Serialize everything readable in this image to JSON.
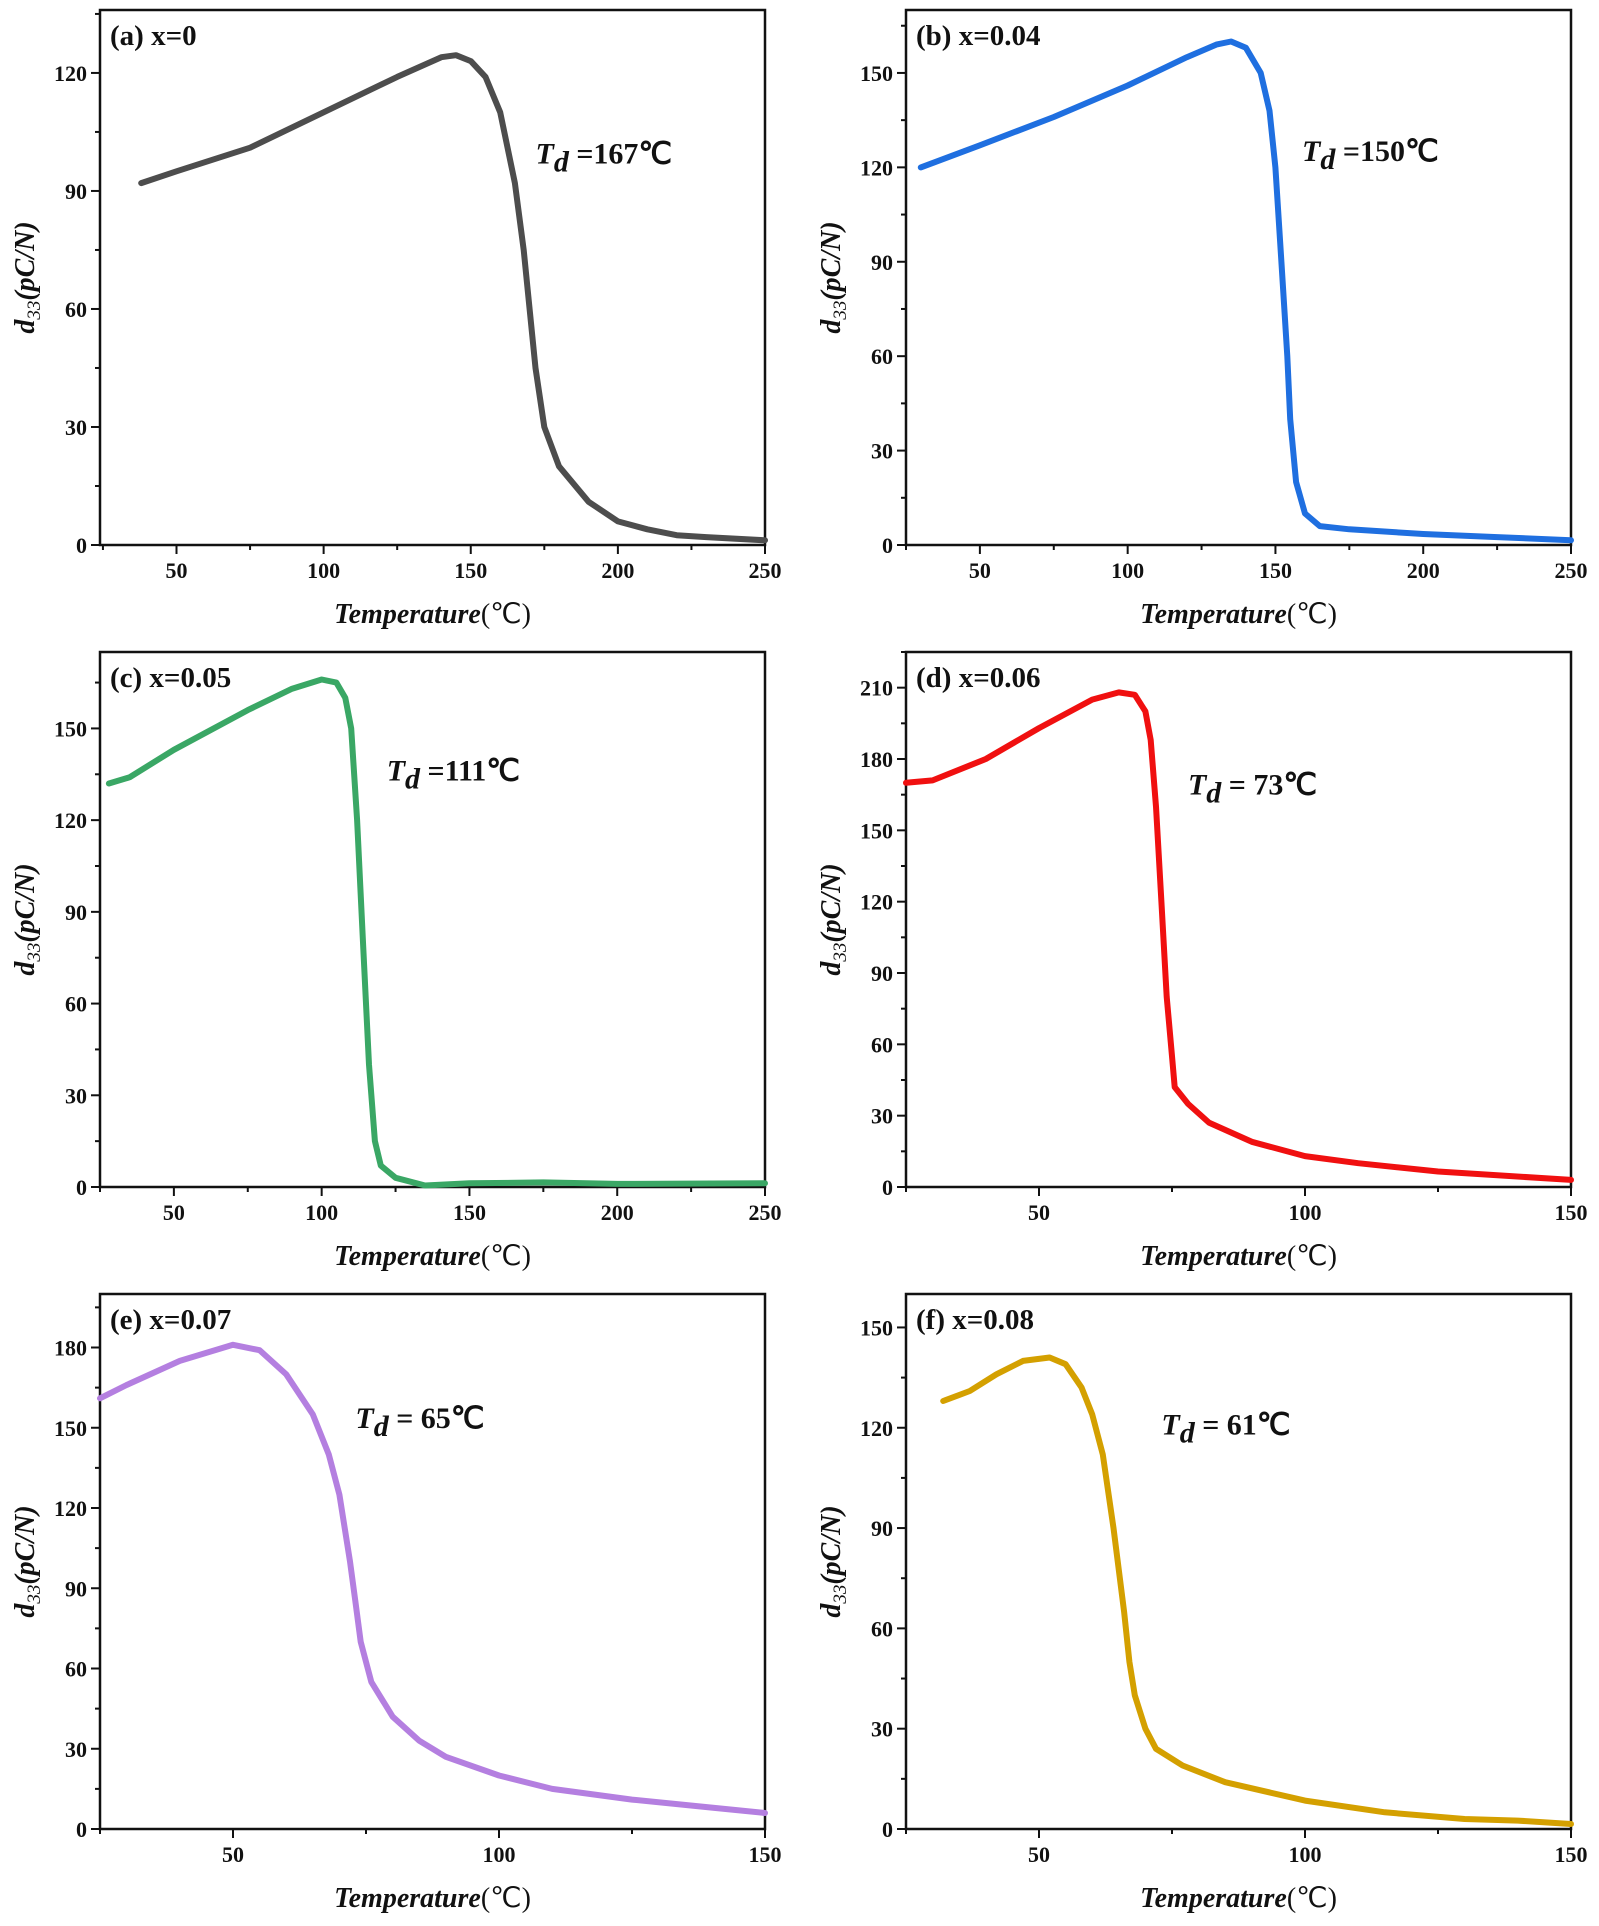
{
  "chart_data": [
    {
      "type": "line",
      "panel_label": "(a) x=0",
      "color": "#4d4d4d",
      "xlabel": "Temperature",
      "xunit": "(℃)",
      "ylabel_main": "d",
      "ylabel_sub": "33",
      "ylabel_rest": "(pC/N)",
      "xlim": [
        24,
        250
      ],
      "ylim": [
        0,
        136
      ],
      "xticks": [
        50,
        100,
        150,
        200,
        250
      ],
      "xminor": 25,
      "yticks": [
        0,
        30,
        60,
        90,
        120
      ],
      "yminor": 15,
      "annotation": {
        "symbol": "T",
        "sub": "d",
        "text": " =167℃",
        "x": 172,
        "y": 97
      },
      "x": [
        38,
        50,
        75,
        100,
        125,
        140,
        145,
        150,
        155,
        160,
        165,
        168,
        170,
        172,
        175,
        180,
        190,
        200,
        210,
        220,
        230,
        250
      ],
      "y": [
        92,
        95,
        101,
        110,
        119,
        124,
        124.5,
        123,
        119,
        110,
        92,
        75,
        60,
        45,
        30,
        20,
        11,
        6,
        4,
        2.5,
        2,
        1.2
      ]
    },
    {
      "type": "line",
      "panel_label": "(b) x=0.04",
      "color": "#1f6fe0",
      "xlabel": "Temperature",
      "xunit": "(℃)",
      "ylabel_main": "d",
      "ylabel_sub": "33",
      "ylabel_rest": "(pC/N)",
      "xlim": [
        25,
        250
      ],
      "ylim": [
        0,
        170
      ],
      "xticks": [
        50,
        100,
        150,
        200,
        250
      ],
      "xminor": 25,
      "yticks": [
        0,
        30,
        60,
        90,
        120,
        150
      ],
      "yminor": 15,
      "annotation": {
        "symbol": "T",
        "sub": "d",
        "text": " =150℃",
        "x": 159,
        "y": 122
      },
      "x": [
        30,
        50,
        75,
        100,
        120,
        130,
        135,
        140,
        145,
        148,
        150,
        152,
        154,
        155,
        157,
        160,
        165,
        175,
        200,
        225,
        250
      ],
      "y": [
        120,
        127,
        136,
        146,
        155,
        159,
        160,
        158,
        150,
        138,
        120,
        90,
        60,
        40,
        20,
        10,
        6,
        5,
        3.5,
        2.5,
        1.5
      ]
    },
    {
      "type": "line",
      "panel_label": "(c) x=0.05",
      "color": "#3aa765",
      "xlabel": "Temperature",
      "xunit": "(℃)",
      "ylabel_main": "d",
      "ylabel_sub": "33",
      "ylabel_rest": "(pC/N)",
      "xlim": [
        25,
        250
      ],
      "ylim": [
        0,
        175
      ],
      "xticks": [
        50,
        100,
        150,
        200,
        250
      ],
      "xminor": 25,
      "yticks": [
        0,
        30,
        60,
        90,
        120,
        150
      ],
      "yminor": 15,
      "annotation": {
        "symbol": "T",
        "sub": "d",
        "text": " =111℃",
        "x": 122,
        "y": 133
      },
      "x": [
        28,
        35,
        50,
        75,
        90,
        100,
        105,
        108,
        110,
        112,
        114,
        116,
        118,
        120,
        125,
        135,
        150,
        175,
        200,
        250
      ],
      "y": [
        132,
        134,
        143,
        156,
        163,
        166,
        165,
        160,
        150,
        120,
        80,
        40,
        15,
        7,
        3,
        0.5,
        1.2,
        1.5,
        1,
        1.2
      ]
    },
    {
      "type": "line",
      "panel_label": "(d) x=0.06",
      "color": "#f01010",
      "xlabel": "Temperature",
      "xunit": "(℃)",
      "ylabel_main": "d",
      "ylabel_sub": "33",
      "ylabel_rest": "(pC/N)",
      "xlim": [
        25,
        150
      ],
      "ylim": [
        0,
        225
      ],
      "xticks": [
        50,
        100,
        150
      ],
      "xminor": 25,
      "yticks": [
        0,
        30,
        60,
        90,
        120,
        150,
        180,
        210
      ],
      "yminor": 15,
      "annotation": {
        "symbol": "T",
        "sub": "d",
        "text": " = 73℃",
        "x": 78,
        "y": 165
      },
      "x": [
        25,
        30,
        40,
        50,
        60,
        65,
        68,
        70,
        71,
        72,
        73,
        74,
        75,
        75.5,
        78,
        82,
        90,
        100,
        110,
        125,
        150
      ],
      "y": [
        170,
        171,
        180,
        193,
        205,
        208,
        207,
        200,
        188,
        160,
        120,
        80,
        55,
        42,
        35,
        27,
        19,
        13,
        10,
        6.5,
        3
      ]
    },
    {
      "type": "line",
      "panel_label": "(e) x=0.07",
      "color": "#b47fe0",
      "xlabel": "Temperature",
      "xunit": "(℃)",
      "ylabel_main": "d",
      "ylabel_sub": "33",
      "ylabel_rest": "(pC/N)",
      "xlim": [
        25,
        150
      ],
      "ylim": [
        0,
        200
      ],
      "xticks": [
        50,
        100,
        150
      ],
      "xminor": 25,
      "yticks": [
        0,
        30,
        60,
        90,
        120,
        150,
        180
      ],
      "yminor": 15,
      "annotation": {
        "symbol": "T",
        "sub": "d",
        "text": " = 65℃",
        "x": 73,
        "y": 150
      },
      "x": [
        25,
        30,
        40,
        50,
        55,
        60,
        65,
        68,
        70,
        72,
        73,
        74,
        76,
        80,
        85,
        90,
        100,
        110,
        125,
        140,
        150
      ],
      "y": [
        161,
        166,
        175,
        181,
        179,
        170,
        155,
        140,
        125,
        100,
        85,
        70,
        55,
        42,
        33,
        27,
        20,
        15,
        11,
        8,
        6
      ]
    },
    {
      "type": "line",
      "panel_label": "(f) x=0.08",
      "color": "#d4a000",
      "xlabel": "Temperature",
      "xunit": "(℃)",
      "ylabel_main": "d",
      "ylabel_sub": "33",
      "ylabel_rest": "(pC/N)",
      "xlim": [
        25,
        150
      ],
      "ylim": [
        0,
        160
      ],
      "xticks": [
        50,
        100,
        150
      ],
      "xminor": 25,
      "yticks": [
        0,
        30,
        60,
        90,
        120,
        150
      ],
      "yminor": 15,
      "annotation": {
        "symbol": "T",
        "sub": "d",
        "text": " = 61℃",
        "x": 73,
        "y": 118
      },
      "x": [
        32,
        37,
        42,
        47,
        52,
        55,
        58,
        60,
        62,
        64,
        66,
        67,
        68,
        70,
        72,
        77,
        85,
        100,
        115,
        130,
        140,
        150
      ],
      "y": [
        128,
        131,
        136,
        140,
        141,
        139,
        132,
        124,
        112,
        90,
        65,
        50,
        40,
        30,
        24,
        19,
        14,
        8.5,
        5,
        3,
        2.5,
        1.5
      ]
    }
  ]
}
